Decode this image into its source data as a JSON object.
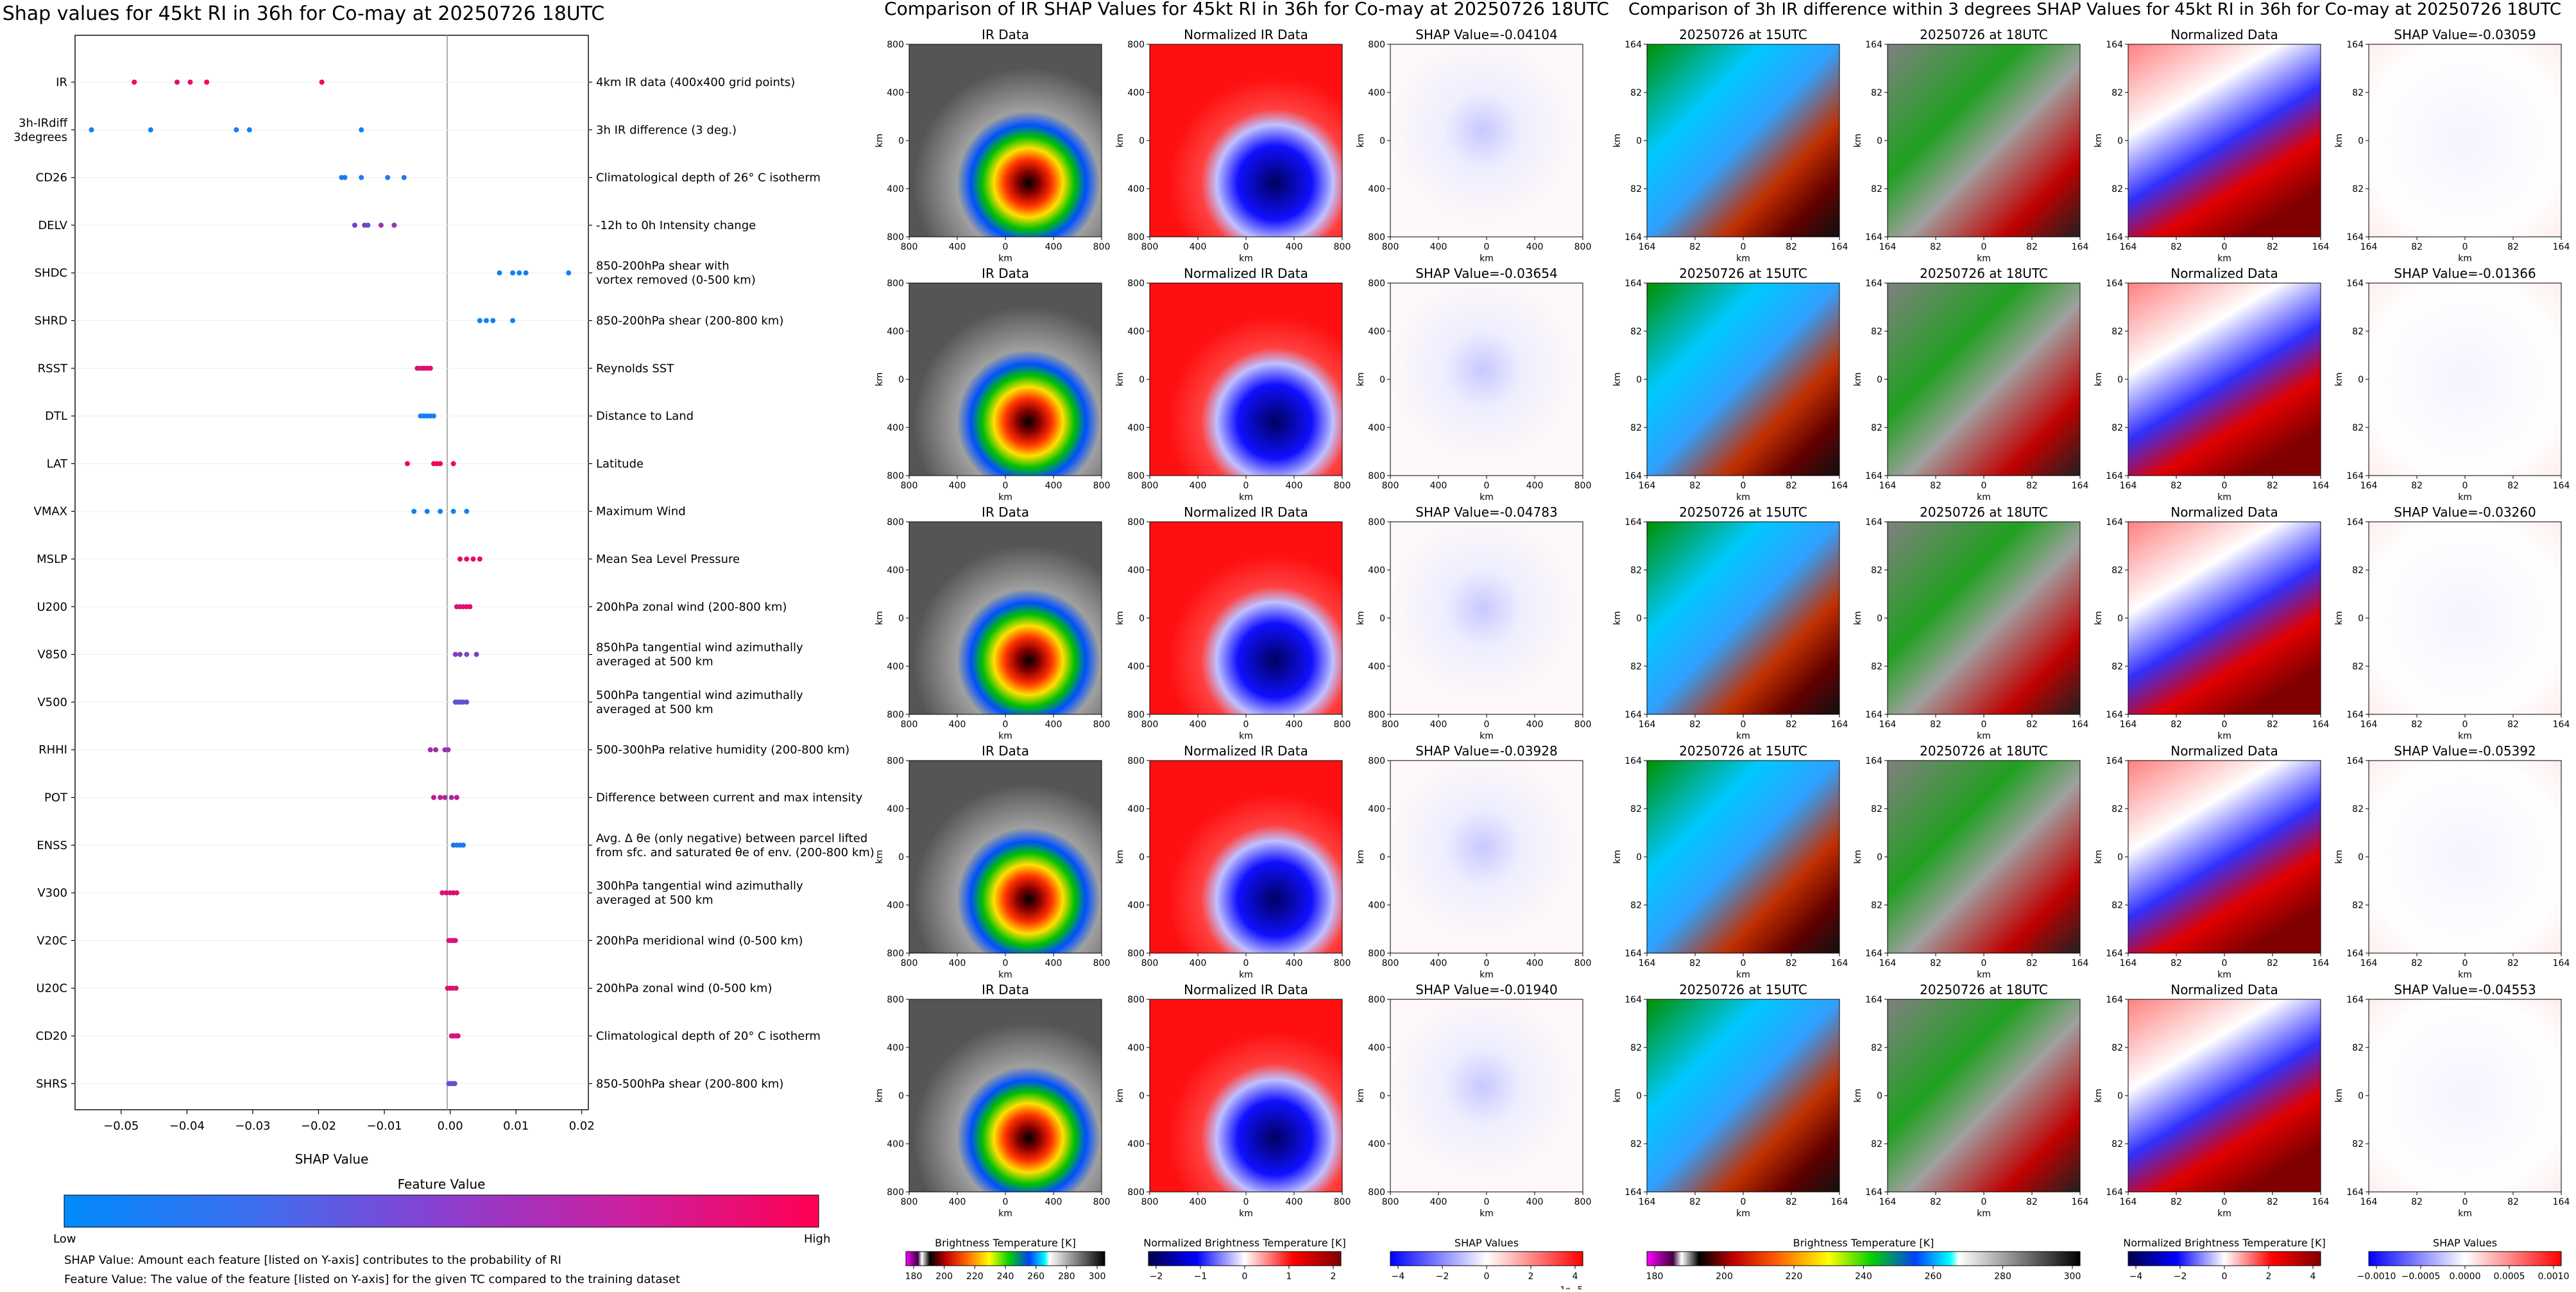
{
  "left": {
    "title": "Shap values for 45kt RI in 36h for Co-may at 20250726 18UTC",
    "xlabel": "SHAP Value",
    "xticks": [
      "−0.05",
      "−0.04",
      "−0.03",
      "−0.02",
      "−0.01",
      "0.00",
      "0.01",
      "0.02"
    ],
    "colorbar_title": "Feature Value",
    "colorbar_low": "Low",
    "colorbar_high": "High",
    "note1": "SHAP Value: Amount each feature [listed on Y-axis] contributes to the probability of RI",
    "note2": "Feature Value: The value of the feature [listed on Y-axis] for the given TC compared to the training dataset",
    "colors": {
      "low": "#1e88e5",
      "mid": "#9b2fae",
      "high": "#ff0052"
    },
    "features": [
      {
        "name": "IR",
        "desc": [
          "4km IR data (400x400 grid points)"
        ]
      },
      {
        "name": "3h-IRdiff\n3degrees",
        "desc": [
          "3h IR difference (3 deg.)"
        ]
      },
      {
        "name": "CD26",
        "desc": [
          "Climatological depth of 26° C isotherm"
        ]
      },
      {
        "name": "DELV",
        "desc": [
          "-12h to 0h Intensity change"
        ]
      },
      {
        "name": "SHDC",
        "desc": [
          "850-200hPa shear with",
          "vortex removed (0-500 km)"
        ]
      },
      {
        "name": "SHRD",
        "desc": [
          "850-200hPa shear (200-800 km)"
        ]
      },
      {
        "name": "RSST",
        "desc": [
          "Reynolds SST"
        ]
      },
      {
        "name": "DTL",
        "desc": [
          "Distance to Land"
        ]
      },
      {
        "name": "LAT",
        "desc": [
          "Latitude"
        ]
      },
      {
        "name": "VMAX",
        "desc": [
          "Maximum Wind"
        ]
      },
      {
        "name": "MSLP",
        "desc": [
          "Mean Sea Level Pressure"
        ]
      },
      {
        "name": "U200",
        "desc": [
          "200hPa zonal wind (200-800 km)"
        ]
      },
      {
        "name": "V850",
        "desc": [
          "850hPa tangential wind azimuthally",
          "averaged at 500 km"
        ]
      },
      {
        "name": "V500",
        "desc": [
          "500hPa tangential wind azimuthally",
          "averaged at 500 km"
        ]
      },
      {
        "name": "RHHI",
        "desc": [
          "500-300hPa relative humidity (200-800 km)"
        ]
      },
      {
        "name": "POT",
        "desc": [
          "Difference between current and max intensity"
        ]
      },
      {
        "name": "ENSS",
        "desc": [
          "Avg. Δ θe (only negative) between parcel lifted",
          "from sfc. and saturated θe of env. (200-800 km)"
        ]
      },
      {
        "name": "V300",
        "desc": [
          "300hPa tangential wind azimuthally",
          "averaged at 500 km"
        ]
      },
      {
        "name": "V20C",
        "desc": [
          "200hPa meridional wind (0-500 km)"
        ]
      },
      {
        "name": "U20C",
        "desc": [
          "200hPa zonal wind (0-500 km)"
        ]
      },
      {
        "name": "CD20",
        "desc": [
          "Climatological depth of 20° C isotherm"
        ]
      },
      {
        "name": "SHRS",
        "desc": [
          "850-500hPa shear (200-800 km)"
        ]
      }
    ]
  },
  "chart_data": {
    "type": "scatter",
    "title": "Shap values for 45kt RI in 36h for Co-may at 20250726 18UTC",
    "xlabel": "SHAP Value",
    "xlim": [
      -0.057,
      0.021
    ],
    "note": "feature value encoded as color 0=low (blue) 1=high (pink)",
    "series": [
      {
        "feature": "IR",
        "points": [
          [
            -0.048,
            0.95
          ],
          [
            -0.0415,
            0.85
          ],
          [
            -0.0395,
            0.9
          ],
          [
            -0.037,
            0.95
          ],
          [
            -0.0195,
            0.95
          ]
        ]
      },
      {
        "feature": "3h-IRdiff 3degrees",
        "points": [
          [
            -0.0545,
            0.05
          ],
          [
            -0.0455,
            0.05
          ],
          [
            -0.0325,
            0.05
          ],
          [
            -0.0305,
            0.05
          ],
          [
            -0.0135,
            0.05
          ]
        ]
      },
      {
        "feature": "CD26",
        "points": [
          [
            -0.0165,
            0.05
          ],
          [
            -0.016,
            0.1
          ],
          [
            -0.0135,
            0.1
          ],
          [
            -0.0095,
            0.1
          ],
          [
            -0.007,
            0.1
          ]
        ]
      },
      {
        "feature": "DELV",
        "points": [
          [
            -0.0145,
            0.4
          ],
          [
            -0.013,
            0.45
          ],
          [
            -0.0125,
            0.3
          ],
          [
            -0.0105,
            0.5
          ],
          [
            -0.0085,
            0.45
          ]
        ]
      },
      {
        "feature": "SHDC",
        "points": [
          [
            0.0075,
            0.05
          ],
          [
            0.0095,
            0.05
          ],
          [
            0.0105,
            0.05
          ],
          [
            0.0115,
            0.05
          ],
          [
            0.018,
            0.05
          ]
        ]
      },
      {
        "feature": "SHRD",
        "points": [
          [
            0.0045,
            0.05
          ],
          [
            0.0055,
            0.05
          ],
          [
            0.0065,
            0.05
          ],
          [
            0.0095,
            0.05
          ]
        ]
      },
      {
        "feature": "RSST",
        "points": [
          [
            -0.005,
            0.85
          ],
          [
            -0.0045,
            0.75
          ],
          [
            -0.004,
            0.8
          ],
          [
            -0.0035,
            0.85
          ],
          [
            -0.003,
            0.95
          ]
        ]
      },
      {
        "feature": "DTL",
        "points": [
          [
            -0.0045,
            0.05
          ],
          [
            -0.004,
            0.05
          ],
          [
            -0.0035,
            0.05
          ],
          [
            -0.003,
            0.1
          ],
          [
            -0.0025,
            0.05
          ]
        ]
      },
      {
        "feature": "LAT",
        "points": [
          [
            -0.0065,
            0.95
          ],
          [
            -0.0025,
            0.9
          ],
          [
            -0.002,
            0.95
          ],
          [
            -0.0015,
            0.9
          ],
          [
            0.0005,
            0.95
          ]
        ]
      },
      {
        "feature": "VMAX",
        "points": [
          [
            -0.0055,
            0.05
          ],
          [
            -0.0035,
            0.05
          ],
          [
            -0.0015,
            0.05
          ],
          [
            0.0005,
            0.05
          ],
          [
            0.0025,
            0.05
          ]
        ]
      },
      {
        "feature": "MSLP",
        "points": [
          [
            0.0015,
            0.95
          ],
          [
            0.0025,
            0.85
          ],
          [
            0.0035,
            0.9
          ],
          [
            0.0045,
            0.9
          ]
        ]
      },
      {
        "feature": "U200",
        "points": [
          [
            0.001,
            0.8
          ],
          [
            0.0015,
            0.85
          ],
          [
            0.002,
            0.8
          ],
          [
            0.0025,
            0.85
          ],
          [
            0.003,
            0.9
          ]
        ]
      },
      {
        "feature": "V850",
        "points": [
          [
            0.0008,
            0.4
          ],
          [
            0.0015,
            0.4
          ],
          [
            0.0025,
            0.35
          ],
          [
            0.004,
            0.4
          ]
        ]
      },
      {
        "feature": "V500",
        "points": [
          [
            0.0008,
            0.3
          ],
          [
            0.0012,
            0.3
          ],
          [
            0.0016,
            0.3
          ],
          [
            0.002,
            0.3
          ],
          [
            0.0025,
            0.3
          ]
        ]
      },
      {
        "feature": "RHHI",
        "points": [
          [
            -0.003,
            0.5
          ],
          [
            -0.0022,
            0.55
          ],
          [
            -0.0008,
            0.45
          ],
          [
            -0.0003,
            0.5
          ]
        ]
      },
      {
        "feature": "POT",
        "points": [
          [
            -0.0025,
            0.7
          ],
          [
            -0.0015,
            0.65
          ],
          [
            -0.0008,
            0.6
          ],
          [
            0.0002,
            0.55
          ],
          [
            0.001,
            0.7
          ]
        ]
      },
      {
        "feature": "ENSS",
        "points": [
          [
            0.0005,
            0.1
          ],
          [
            0.001,
            0.1
          ],
          [
            0.0015,
            0.1
          ],
          [
            0.002,
            0.05
          ]
        ]
      },
      {
        "feature": "V300",
        "points": [
          [
            -0.0012,
            0.8
          ],
          [
            -0.0006,
            0.85
          ],
          [
            0.0,
            0.8
          ],
          [
            0.0005,
            0.85
          ],
          [
            0.001,
            0.85
          ]
        ]
      },
      {
        "feature": "V20C",
        "points": [
          [
            -0.0002,
            0.8
          ],
          [
            0.0002,
            0.75
          ],
          [
            0.0005,
            0.8
          ],
          [
            0.0008,
            0.8
          ]
        ]
      },
      {
        "feature": "U20C",
        "points": [
          [
            -0.0004,
            0.85
          ],
          [
            0.0,
            0.8
          ],
          [
            0.0004,
            0.85
          ],
          [
            0.0009,
            0.8
          ]
        ]
      },
      {
        "feature": "CD20",
        "points": [
          [
            0.0002,
            0.8
          ],
          [
            0.0005,
            0.75
          ],
          [
            0.0009,
            0.8
          ],
          [
            0.0012,
            0.8
          ]
        ]
      },
      {
        "feature": "SHRS",
        "points": [
          [
            -0.0002,
            0.3
          ],
          [
            0.0001,
            0.3
          ],
          [
            0.0004,
            0.35
          ],
          [
            0.0007,
            0.3
          ]
        ]
      }
    ]
  },
  "middle": {
    "title": "Comparison of IR SHAP Values for 45kt RI in 36h for Co-may at 20250726 18UTC",
    "col_titles": [
      "IR Data",
      "Normalized IR Data"
    ],
    "shap_titles": [
      "SHAP Value=-0.04104",
      "SHAP Value=-0.03654",
      "SHAP Value=-0.04783",
      "SHAP Value=-0.03928",
      "SHAP Value=-0.01940"
    ],
    "yticks": [
      "800",
      "400",
      "0",
      "400",
      "800"
    ],
    "xticks": [
      "800",
      "400",
      "0",
      "400",
      "800"
    ],
    "axis_unit": "km",
    "colorbars": [
      {
        "label": "Brightness Temperature [K]",
        "ticks": [
          "180",
          "200",
          "220",
          "240",
          "260",
          "280",
          "300"
        ]
      },
      {
        "label": "Normalized Brightness Temperature [K]",
        "ticks": [
          "−2",
          "−1",
          "0",
          "1",
          "2"
        ]
      },
      {
        "label": "SHAP Values",
        "ticks": [
          "−4",
          "−2",
          "0",
          "2",
          "4"
        ],
        "exp": "1e−5"
      }
    ]
  },
  "right": {
    "title": "Comparison of 3h IR difference within 3 degrees SHAP Values for 45kt RI in 36h for Co-may at 20250726 18UTC",
    "col_titles": [
      "20250726 at 15UTC",
      "20250726 at 18UTC",
      "Normalized Data"
    ],
    "shap_titles": [
      "SHAP Value=-0.03059",
      "SHAP Value=-0.01366",
      "SHAP Value=-0.03260",
      "SHAP Value=-0.05392",
      "SHAP Value=-0.04553"
    ],
    "yticks": [
      "164",
      "82",
      "0",
      "82",
      "164"
    ],
    "xticks": [
      "164",
      "82",
      "0",
      "82",
      "164"
    ],
    "axis_unit": "km",
    "colorbars": [
      {
        "label": "Brightness Temperature [K]",
        "ticks": [
          "180",
          "200",
          "220",
          "240",
          "260",
          "280",
          "300"
        ]
      },
      {
        "label": "Normalized Brightness Temperature [K]",
        "ticks": [
          "−4",
          "−2",
          "0",
          "2",
          "4"
        ]
      },
      {
        "label": "SHAP Values",
        "ticks": [
          "−0.0010",
          "−0.0005",
          "0.0000",
          "0.0005",
          "0.0010"
        ]
      }
    ]
  }
}
